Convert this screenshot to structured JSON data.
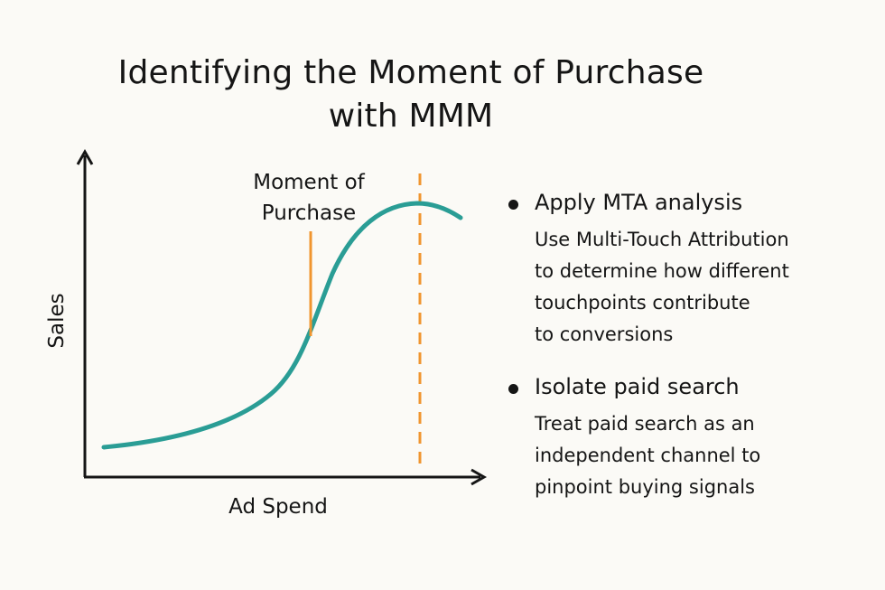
{
  "title": {
    "line1": "Identifying the Moment of Purchase",
    "line2": "with MMM"
  },
  "diagram": {
    "y_axis_label": "Sales",
    "x_axis_label": "Ad Spend",
    "marker_label_line1": "Moment of",
    "marker_label_line2": "Purchase",
    "curve_color": "#2a9d95",
    "marker_color": "#f0952f"
  },
  "bullets": [
    {
      "heading": "Apply MTA analysis",
      "lines": [
        "Use Multi-Touch Attribution",
        "to determine how different",
        "touchpoints contribute",
        "to conversions"
      ]
    },
    {
      "heading": "Isolate paid search",
      "lines": [
        "Treat paid search as an",
        "independent channel to",
        "pinpoint buying signals"
      ]
    }
  ]
}
